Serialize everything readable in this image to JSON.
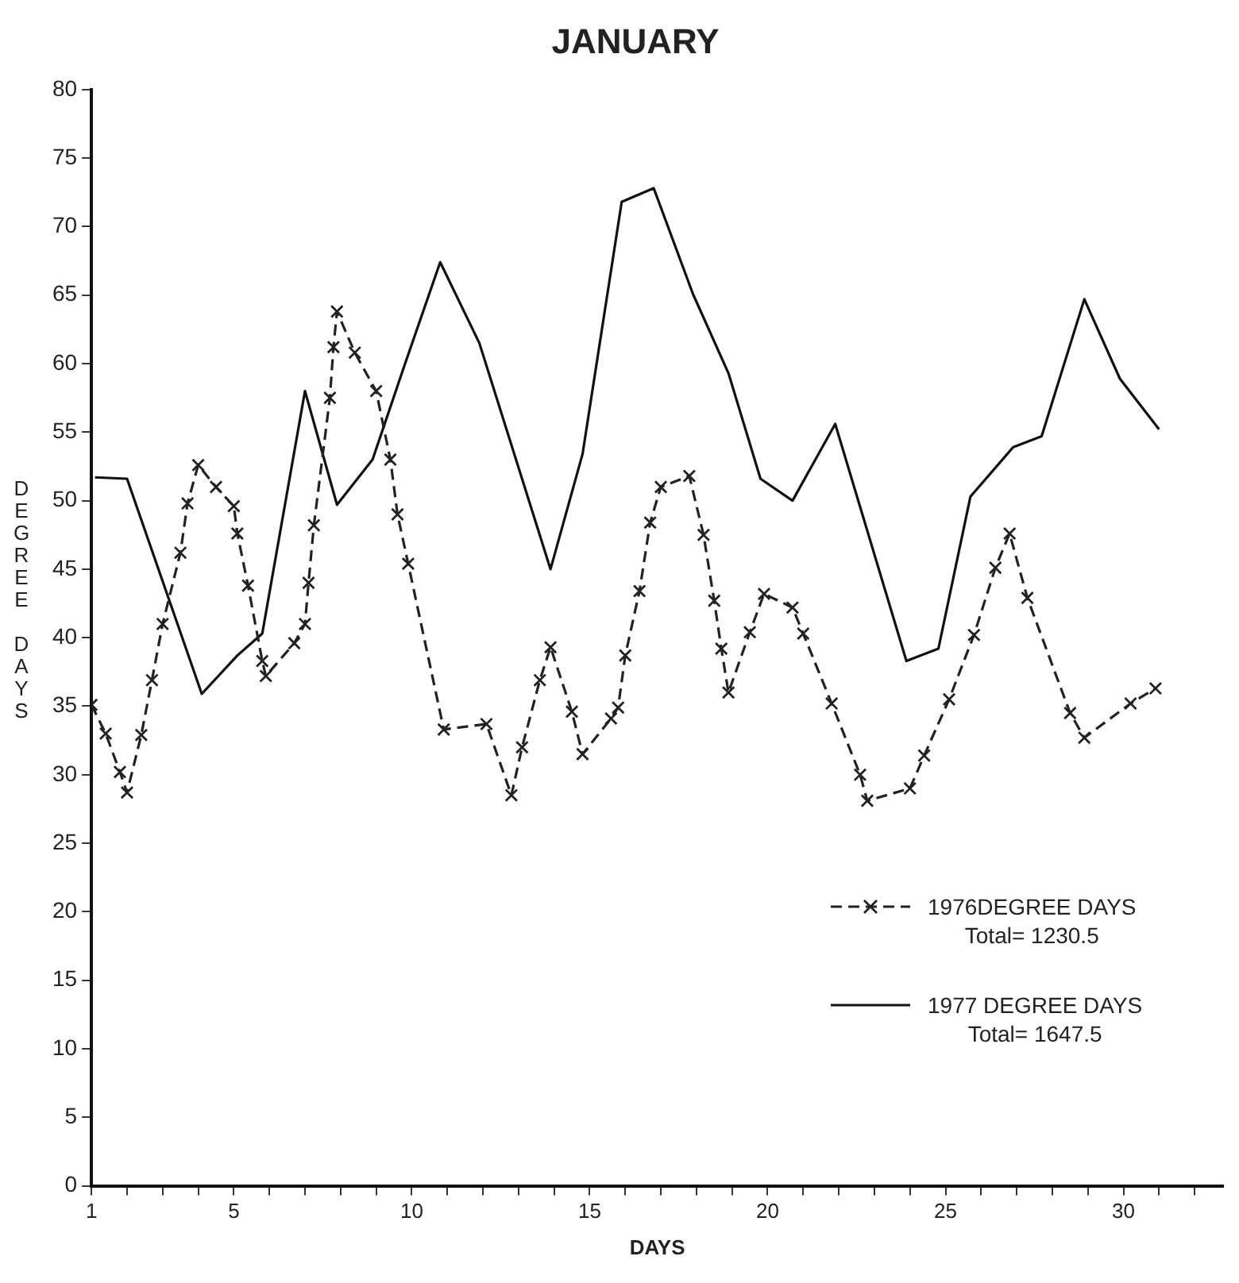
{
  "chart_data": {
    "type": "line",
    "title": "JANUARY",
    "xlabel": "DAYS",
    "ylabel": "DEGREE DAYS",
    "xlim": [
      1,
      32.8
    ],
    "ylim": [
      0,
      80
    ],
    "xticks": [
      1,
      {
        "value": 2,
        "label": null
      },
      {
        "value": 3,
        "label": null
      },
      {
        "value": 4,
        "label": null
      },
      5,
      {
        "value": 6,
        "label": null
      },
      {
        "value": 7,
        "label": null
      },
      {
        "value": 8,
        "label": null
      },
      {
        "value": 9,
        "label": null
      },
      10,
      {
        "value": 11,
        "label": null
      },
      {
        "value": 12,
        "label": null
      },
      {
        "value": 13,
        "label": null
      },
      {
        "value": 14,
        "label": null
      },
      15,
      {
        "value": 16,
        "label": null
      },
      {
        "value": 17,
        "label": null
      },
      {
        "value": 18,
        "label": null
      },
      {
        "value": 19,
        "label": null
      },
      20,
      {
        "value": 21,
        "label": null
      },
      {
        "value": 22,
        "label": null
      },
      {
        "value": 23,
        "label": null
      },
      {
        "value": 24,
        "label": null
      },
      25,
      {
        "value": 26,
        "label": null
      },
      {
        "value": 27,
        "label": null
      },
      {
        "value": 28,
        "label": null
      },
      {
        "value": 29,
        "label": null
      },
      30,
      {
        "value": 31,
        "label": null
      },
      {
        "value": 32,
        "label": null
      }
    ],
    "yticks": [
      0,
      5,
      10,
      15,
      20,
      25,
      30,
      35,
      40,
      45,
      50,
      55,
      60,
      65,
      70,
      75,
      80
    ],
    "grid": false,
    "legend": "bottom right",
    "series": [
      {
        "name": "1976DEGREE DAYS",
        "color": "#222222",
        "line_style": "dashed",
        "marker": "cross",
        "x": [
          1.0,
          1.4,
          1.8,
          2.0,
          2.4,
          2.7,
          3.0,
          3.5,
          3.7,
          4.0,
          4.5,
          5.0,
          5.1,
          5.4,
          5.8,
          5.9,
          6.7,
          7.0,
          7.1,
          7.25,
          7.7,
          7.8,
          7.9,
          8.4,
          9.0,
          9.4,
          9.6,
          9.9,
          10.9,
          12.1,
          12.8,
          13.1,
          13.6,
          13.9,
          14.5,
          14.8,
          15.6,
          15.8,
          16.0,
          16.4,
          16.7,
          17.0,
          17.8,
          18.2,
          18.5,
          18.7,
          18.9,
          19.5,
          19.9,
          20.7,
          21.0,
          21.8,
          22.6,
          22.8,
          24.0,
          24.4,
          25.1,
          25.8,
          26.4,
          26.8,
          27.3,
          28.5,
          28.9,
          30.2,
          30.9
        ],
        "values": [
          35.1,
          33.0,
          30.2,
          28.7,
          32.9,
          36.9,
          41.0,
          46.2,
          49.8,
          52.6,
          51.0,
          49.6,
          47.6,
          43.8,
          38.3,
          37.2,
          39.6,
          41.0,
          44.0,
          48.2,
          57.5,
          61.2,
          63.8,
          60.8,
          58.0,
          53.0,
          49.0,
          45.4,
          33.3,
          33.7,
          28.5,
          32.0,
          36.9,
          39.3,
          34.6,
          31.5,
          34.1,
          34.9,
          38.7,
          43.4,
          48.4,
          51.0,
          51.8,
          47.5,
          42.7,
          39.2,
          36.0,
          40.4,
          43.2,
          42.2,
          40.3,
          35.2,
          30.0,
          28.1,
          29.0,
          31.4,
          35.5,
          40.2,
          45.1,
          47.6,
          42.9,
          34.5,
          32.7,
          35.2,
          36.3
        ]
      },
      {
        "name": "1977 DEGREE DAYS",
        "color": "#111111",
        "line_style": "solid",
        "marker": "none",
        "x": [
          1.1,
          2.0,
          4.1,
          5.1,
          5.8,
          7.0,
          7.9,
          8.9,
          9.8,
          10.8,
          11.9,
          13.9,
          14.8,
          15.9,
          16.8,
          17.9,
          18.9,
          19.8,
          20.7,
          21.9,
          23.9,
          24.8,
          25.7,
          26.9,
          27.7,
          28.9,
          29.9,
          31.0
        ],
        "values": [
          51.7,
          51.6,
          35.9,
          38.7,
          40.3,
          58.0,
          49.7,
          53.0,
          59.9,
          67.4,
          61.5,
          45.0,
          53.4,
          71.8,
          72.8,
          65.1,
          59.3,
          51.6,
          50.0,
          55.6,
          38.3,
          39.2,
          50.3,
          53.9,
          54.7,
          64.7,
          58.9,
          55.2
        ]
      }
    ],
    "annotations": [
      "Total= 1230.5",
      "Total= 1647.5"
    ]
  }
}
